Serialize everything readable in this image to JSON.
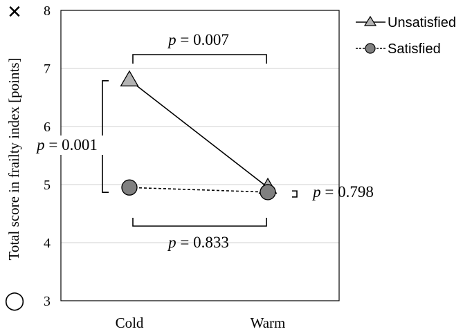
{
  "chart_data": {
    "type": "line",
    "categories": [
      "Cold",
      "Warm"
    ],
    "series": [
      {
        "name": "Unsatisfied",
        "values": [
          6.8,
          4.95
        ],
        "marker": "triangle",
        "line_style": "solid",
        "color": "#b3b3b3"
      },
      {
        "name": "Satisfied",
        "values": [
          4.95,
          4.87
        ],
        "marker": "circle",
        "line_style": "dashed",
        "color": "#808080"
      }
    ],
    "ylabel": "Total score in frailty index [points]",
    "xlabel": "",
    "ylim": [
      3,
      8
    ],
    "yticks": [
      3,
      4,
      5,
      6,
      7,
      8
    ],
    "grid": true,
    "legend_position": "top-right",
    "annotations": [
      {
        "p_label": "p",
        "value_text": " = 0.007",
        "compares": "Unsatisfied: Cold vs Warm"
      },
      {
        "p_label": "p",
        "value_text": " = 0.833",
        "compares": "Satisfied: Cold vs Warm"
      },
      {
        "p_label": "p",
        "value_text": " = 0.001",
        "compares": "Cold: Unsatisfied vs Satisfied"
      },
      {
        "p_label": "p",
        "value_text": " = 0.798",
        "compares": "Warm: Unsatisfied vs Satisfied"
      }
    ],
    "corner_symbols": [
      "✕",
      "◯"
    ]
  }
}
